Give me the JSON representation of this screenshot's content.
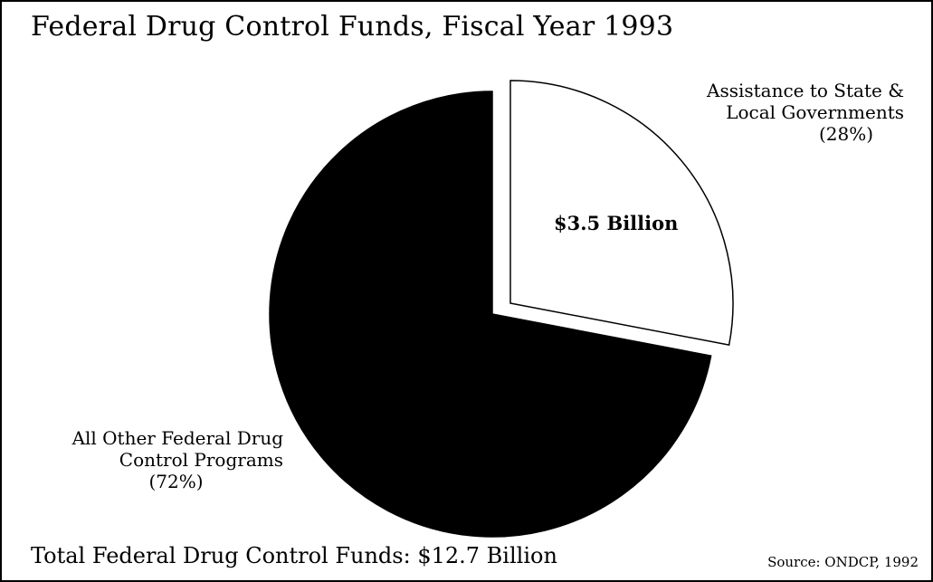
{
  "title": "Federal Drug Control Funds, Fiscal Year 1993",
  "total_label": "Total Federal Drug Control Funds: $12.7 Billion",
  "source": "Source: ONDCP, 1992",
  "chart_data": {
    "type": "pie",
    "slices": [
      {
        "label_lines": [
          "Assistance to State &",
          "Local Governments"
        ],
        "percent_text": "(28%)",
        "percent": 28,
        "value_label": "$3.5 Billion",
        "value_billions": 3.5,
        "color": "#ffffff",
        "exploded": true
      },
      {
        "label_lines": [
          "All Other Federal Drug",
          "Control Programs"
        ],
        "percent_text": "(72%)",
        "percent": 72,
        "value_billions": 9.2,
        "color": "#000000",
        "exploded": false
      }
    ],
    "total_billions": 12.7
  }
}
